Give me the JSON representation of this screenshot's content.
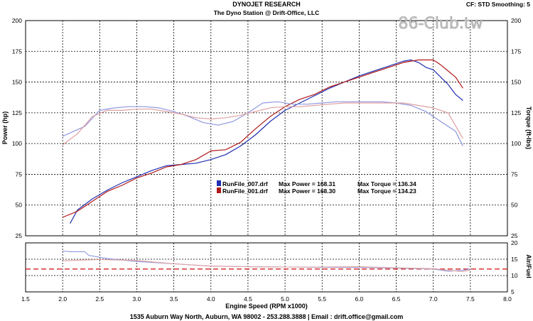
{
  "header": {
    "title": "DYNOJET RESEARCH",
    "subtitle": "The Dyno Station @ Drift-Office, LLC",
    "settings": "CF: STD  Smoothing: 5",
    "watermark": "86-Club.tw"
  },
  "footer": "1535 Auburn Way North, Auburn, WA 98002 - 253.288.3888 | Email : drift.office@gmail.com",
  "legend": [
    {
      "run": "RunFile_007.drf",
      "power_label": "Max Power = 168.31",
      "torque_label": "Max Torque = 136.34",
      "color": "#1f2fb0"
    },
    {
      "run": "RunFile_001.drf",
      "power_label": "Max Power = 168.30",
      "torque_label": "Max Torque = 134.23",
      "color": "#b01818"
    }
  ],
  "chart_data": [
    {
      "type": "line",
      "xlabel": "Engine Speed (RPM x1000)",
      "ylabel": "Power (hp)",
      "y2label": "Torque (ft-lbs)",
      "xlim": [
        1.5,
        8.0
      ],
      "ylim": [
        25,
        200
      ],
      "y2lim": [
        25,
        200
      ],
      "xticks": [
        "1.5",
        "2.0",
        "2.5",
        "3.0",
        "3.5",
        "4.0",
        "4.5",
        "5.0",
        "5.5",
        "6.0",
        "6.5",
        "7.0",
        "7.5",
        "8.0"
      ],
      "yticks": [
        "25",
        "50",
        "75",
        "100",
        "125",
        "150",
        "175",
        "200"
      ],
      "grid": true,
      "series": [
        {
          "name": "RunFile_007.drf",
          "measure": "power",
          "color": "#1f2fb0",
          "x": [
            2.1,
            2.2,
            2.4,
            2.6,
            2.8,
            3.0,
            3.2,
            3.4,
            3.6,
            3.8,
            4.0,
            4.2,
            4.4,
            4.6,
            4.8,
            5.0,
            5.2,
            5.4,
            5.6,
            5.8,
            6.0,
            6.2,
            6.4,
            6.6,
            6.7,
            6.8,
            6.9,
            7.0,
            7.1,
            7.2,
            7.3,
            7.4
          ],
          "y": [
            35,
            46,
            55,
            62,
            68,
            73,
            78,
            82,
            83,
            84,
            87,
            91,
            98,
            107,
            118,
            127,
            133,
            139,
            145,
            150,
            155,
            159,
            163,
            167,
            168,
            166,
            162,
            160,
            154,
            148,
            140,
            135
          ]
        },
        {
          "name": "RunFile_001.drf",
          "measure": "power",
          "color": "#b01818",
          "x": [
            2.0,
            2.2,
            2.4,
            2.6,
            2.8,
            3.0,
            3.2,
            3.4,
            3.6,
            3.8,
            4.0,
            4.2,
            4.4,
            4.6,
            4.8,
            5.0,
            5.2,
            5.4,
            5.6,
            5.8,
            6.0,
            6.2,
            6.4,
            6.6,
            6.8,
            7.0,
            7.1,
            7.2,
            7.3,
            7.4
          ],
          "y": [
            40,
            45,
            53,
            61,
            66,
            72,
            76,
            81,
            83,
            87,
            94,
            95,
            101,
            112,
            122,
            130,
            136,
            140,
            146,
            150,
            154,
            158,
            162,
            166,
            168,
            168,
            164,
            159,
            154,
            145
          ]
        },
        {
          "name": "RunFile_007.drf",
          "measure": "torque",
          "color": "#8f98e0",
          "x": [
            2.0,
            2.15,
            2.3,
            2.5,
            2.7,
            2.9,
            3.1,
            3.3,
            3.5,
            3.7,
            3.9,
            4.1,
            4.3,
            4.5,
            4.7,
            4.9,
            5.1,
            5.3,
            5.5,
            5.7,
            5.9,
            6.1,
            6.3,
            6.5,
            6.7,
            6.9,
            7.1,
            7.3,
            7.4
          ],
          "y": [
            106,
            110,
            114,
            127,
            129,
            130,
            130,
            129,
            126,
            122,
            117,
            115,
            118,
            125,
            133,
            134,
            132,
            132,
            133,
            134,
            134,
            134,
            134,
            133,
            131,
            126,
            118,
            110,
            98
          ]
        },
        {
          "name": "RunFile_001.drf",
          "measure": "torque",
          "color": "#e0a0a0",
          "x": [
            2.0,
            2.2,
            2.4,
            2.6,
            2.8,
            3.0,
            3.2,
            3.4,
            3.6,
            3.8,
            4.0,
            4.2,
            4.4,
            4.6,
            4.8,
            5.0,
            5.2,
            5.4,
            5.6,
            5.8,
            6.0,
            6.2,
            6.4,
            6.6,
            6.8,
            7.0,
            7.2,
            7.4
          ],
          "y": [
            99,
            108,
            122,
            127,
            127,
            128,
            128,
            126,
            124,
            121,
            120,
            121,
            123,
            126,
            129,
            130,
            130,
            131,
            132,
            133,
            133,
            133,
            133,
            133,
            131,
            129,
            125,
            104
          ]
        }
      ]
    },
    {
      "type": "line",
      "ylabel": "Air/Fuel",
      "xlim": [
        1.5,
        8.0
      ],
      "ylim": [
        5,
        20
      ],
      "yticks": [
        "5",
        "10",
        "15",
        "20"
      ],
      "reference_line": 12.0,
      "grid": true,
      "series": [
        {
          "name": "RunFile_007.drf",
          "color": "#8f98e0",
          "x": [
            2.0,
            2.1,
            2.3,
            2.35,
            2.6,
            3.0,
            3.5,
            4.0,
            4.5,
            5.0,
            5.5,
            6.0,
            6.5,
            7.0,
            7.2,
            7.4,
            7.5
          ],
          "y": [
            17.5,
            17.3,
            17.3,
            16.2,
            15.2,
            14.3,
            13.6,
            12.9,
            12.7,
            12.6,
            12.5,
            12.5,
            12.3,
            12.0,
            11.3,
            11.6,
            12.0
          ]
        },
        {
          "name": "RunFile_001.drf",
          "color": "#e0a0a0",
          "x": [
            2.0,
            2.2,
            2.5,
            3.0,
            3.5,
            4.0,
            4.5,
            5.0,
            5.5,
            6.0,
            6.5,
            7.0,
            7.2,
            7.4,
            7.5
          ],
          "y": [
            14.5,
            14.7,
            14.9,
            14.6,
            13.6,
            12.9,
            12.7,
            12.6,
            12.6,
            12.7,
            12.4,
            12.1,
            11.6,
            11.2,
            11.7
          ]
        }
      ]
    }
  ]
}
